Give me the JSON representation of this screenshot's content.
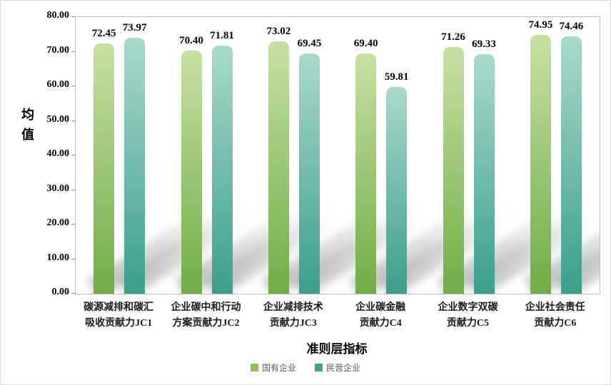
{
  "chart_data": {
    "type": "bar",
    "title": "",
    "xlabel": "准则层指标",
    "ylabel": "均值",
    "ylim": [
      0,
      80
    ],
    "ytick_step": 10,
    "ytick_labels": [
      "0.00",
      "10.00",
      "20.00",
      "30.00",
      "40.00",
      "50.00",
      "60.00",
      "70.00",
      "80.00"
    ],
    "grid": false,
    "legend_position": "bottom",
    "categories": [
      "碳源减排和碳汇\n吸收贡献力JC1",
      "企业碳中和行动\n方案贡献力JC2",
      "企业减排技术\n贡献力JC3",
      "企业碳金融\n贡献力C4",
      "企业数字双碳\n贡献力C5",
      "企业社会责任\n贡献力C6"
    ],
    "series": [
      {
        "name": "国有企业",
        "color_top": "#c6e0a2",
        "color_bottom": "#70ad47",
        "legend_color": "#8cbf5e",
        "values": [
          72.45,
          70.4,
          73.02,
          69.4,
          71.26,
          74.95
        ]
      },
      {
        "name": "民营企业",
        "color_top": "#a9d9cb",
        "color_bottom": "#3b9e8e",
        "legend_color": "#4aa090",
        "values": [
          73.97,
          71.81,
          69.45,
          59.81,
          69.33,
          74.46
        ]
      }
    ],
    "value_label_decimals": 2
  }
}
